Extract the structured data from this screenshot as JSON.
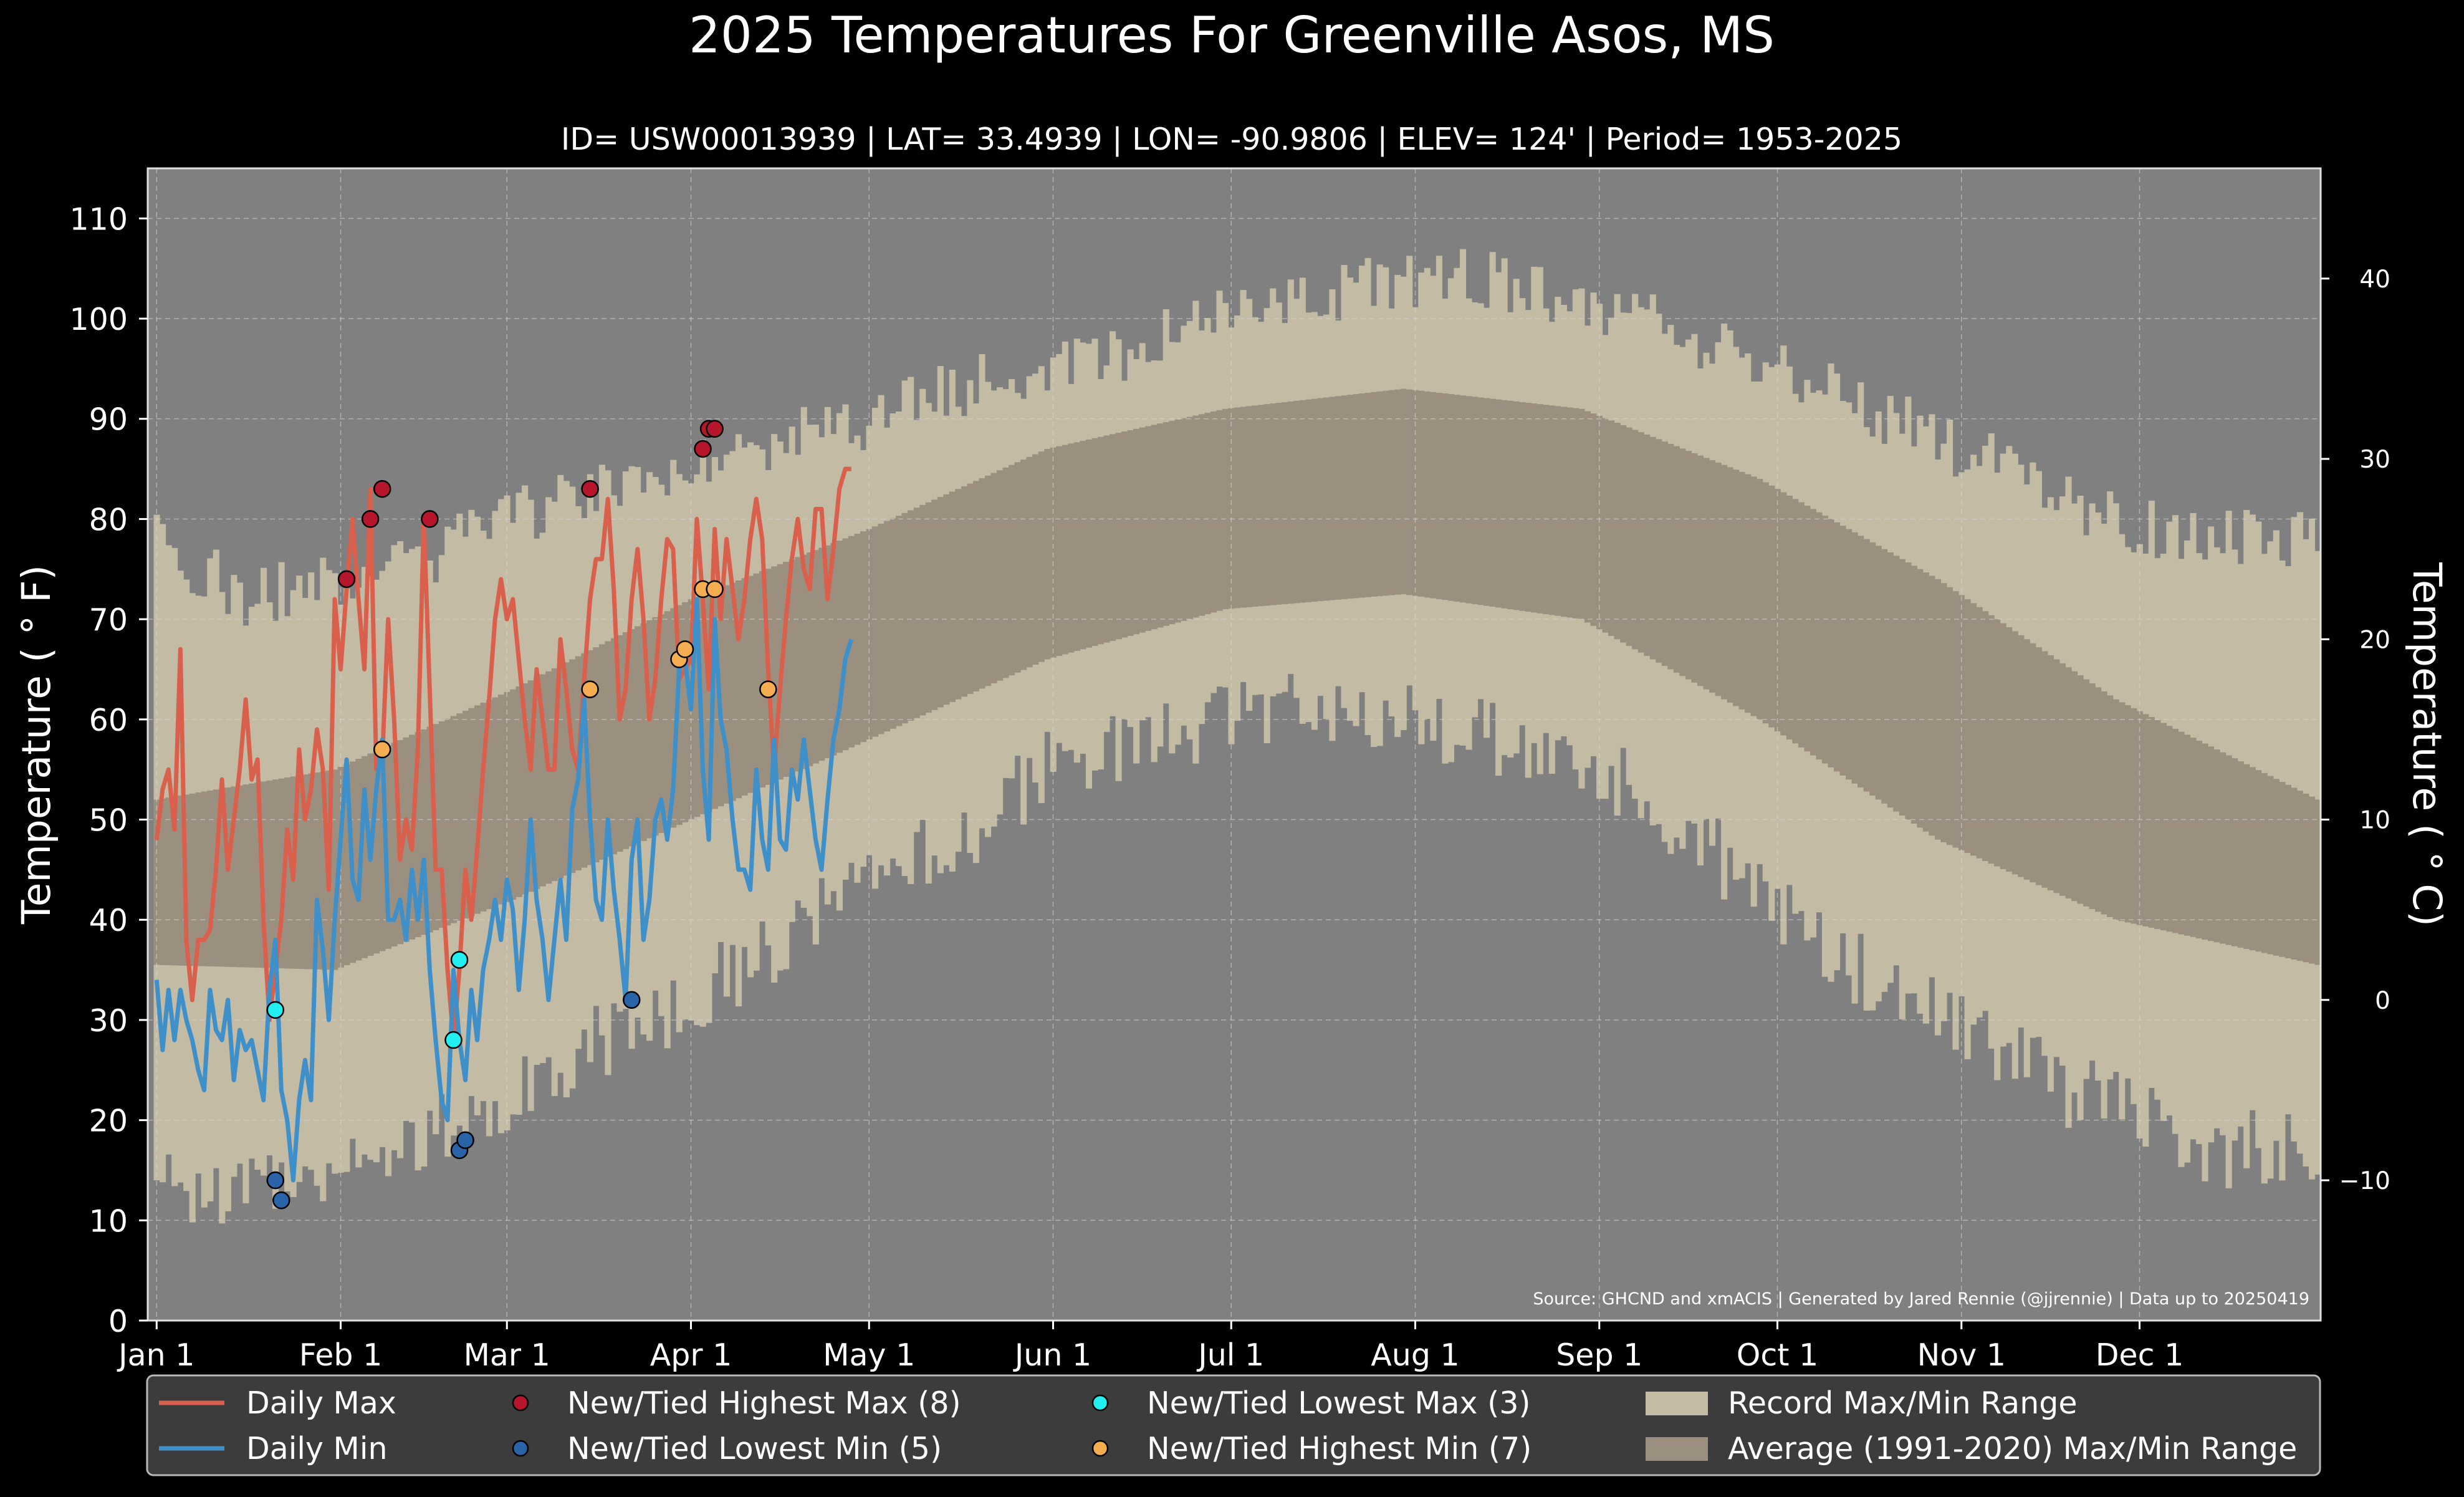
{
  "chart_data": {
    "type": "line",
    "title": "2025 Temperatures For Greenville Asos, MS",
    "subtitle": "ID= USW00013939 | LAT= 33.4939 | LON= -90.9806 | ELEV= 124' | Period= 1953-2025",
    "ylabel_left": "Temperature ($^\\circ$F)",
    "ylabel_left_display": "Temperature ( ° F)",
    "ylabel_right_display": "Temperature ( ° C)",
    "source": "Source: GHCND and xmACIS | Generated by Jared Rennie (@jjrennie) | Data up to 20250419",
    "ylim_f": [
      0,
      115
    ],
    "xlim_day": [
      -1.5,
      364.5
    ],
    "yticks_f": [
      0,
      10,
      20,
      30,
      40,
      50,
      60,
      70,
      80,
      90,
      100,
      110
    ],
    "yticks_c": [
      -10,
      0,
      10,
      20,
      30,
      40
    ],
    "xticks": [
      {
        "label": "Jan 1",
        "day": 0
      },
      {
        "label": "Feb 1",
        "day": 31
      },
      {
        "label": "Mar 1",
        "day": 59
      },
      {
        "label": "Apr 1",
        "day": 90
      },
      {
        "label": "May 1",
        "day": 120
      },
      {
        "label": "Jun 1",
        "day": 151
      },
      {
        "label": "Jul 1",
        "day": 181
      },
      {
        "label": "Aug 1",
        "day": 212
      },
      {
        "label": "Sep 1",
        "day": 243
      },
      {
        "label": "Oct 1",
        "day": 273
      },
      {
        "label": "Nov 1",
        "day": 304
      },
      {
        "label": "Dec 1",
        "day": 334
      }
    ],
    "grid": true,
    "legend_position": "bottom",
    "colors": {
      "daily_max": "#d9604c",
      "daily_min": "#3f8fc9",
      "record_range": "#c4bba5",
      "average_range": "#9b9080",
      "background": "#808080",
      "highest_max": "#b5162b",
      "lowest_min": "#2a63a8",
      "lowest_max": "#22f0f0",
      "highest_min": "#f5ad52"
    },
    "legend": [
      {
        "key": "daily_max",
        "label": "Daily Max",
        "kind": "line"
      },
      {
        "key": "daily_min",
        "label": "Daily Min",
        "kind": "line"
      },
      {
        "key": "highest_max",
        "label": "New/Tied Highest Max (8)",
        "kind": "dot"
      },
      {
        "key": "lowest_min",
        "label": "New/Tied Lowest Min (5)",
        "kind": "dot"
      },
      {
        "key": "lowest_max",
        "label": "New/Tied Lowest Max (3)",
        "kind": "dot"
      },
      {
        "key": "highest_min",
        "label": "New/Tied Highest Min (7)",
        "kind": "dot"
      },
      {
        "key": "record_range",
        "label": "Record Max/Min Range",
        "kind": "patch"
      },
      {
        "key": "average_range",
        "label": "Average (1991-2020) Max/Min Range",
        "kind": "patch"
      }
    ],
    "record_max_anchors": [
      [
        0,
        78
      ],
      [
        15,
        72
      ],
      [
        30,
        74
      ],
      [
        45,
        76
      ],
      [
        60,
        80
      ],
      [
        75,
        83
      ],
      [
        90,
        86
      ],
      [
        105,
        88
      ],
      [
        120,
        90
      ],
      [
        135,
        93
      ],
      [
        150,
        95
      ],
      [
        165,
        97
      ],
      [
        180,
        100
      ],
      [
        195,
        102
      ],
      [
        210,
        104
      ],
      [
        225,
        104
      ],
      [
        240,
        102
      ],
      [
        255,
        99
      ],
      [
        270,
        96
      ],
      [
        285,
        92
      ],
      [
        300,
        88
      ],
      [
        315,
        84
      ],
      [
        330,
        80
      ],
      [
        345,
        78
      ],
      [
        364,
        78
      ]
    ],
    "record_min_anchors": [
      [
        0,
        13
      ],
      [
        15,
        13
      ],
      [
        30,
        16
      ],
      [
        45,
        18
      ],
      [
        60,
        23
      ],
      [
        75,
        28
      ],
      [
        90,
        32
      ],
      [
        105,
        38
      ],
      [
        120,
        43
      ],
      [
        135,
        48
      ],
      [
        150,
        55
      ],
      [
        165,
        57
      ],
      [
        180,
        60
      ],
      [
        195,
        62
      ],
      [
        210,
        60
      ],
      [
        225,
        58
      ],
      [
        240,
        56
      ],
      [
        255,
        50
      ],
      [
        270,
        43
      ],
      [
        285,
        36
      ],
      [
        300,
        30
      ],
      [
        315,
        25
      ],
      [
        330,
        21
      ],
      [
        345,
        17
      ],
      [
        364,
        17
      ]
    ],
    "average_max_anchors": [
      [
        0,
        52
      ],
      [
        30,
        55
      ],
      [
        60,
        63
      ],
      [
        90,
        72
      ],
      [
        120,
        79
      ],
      [
        150,
        87
      ],
      [
        180,
        91
      ],
      [
        210,
        93
      ],
      [
        240,
        91
      ],
      [
        270,
        84
      ],
      [
        300,
        74
      ],
      [
        330,
        62
      ],
      [
        364,
        52
      ]
    ],
    "average_min_anchors": [
      [
        0,
        35.5
      ],
      [
        30,
        35
      ],
      [
        60,
        42
      ],
      [
        90,
        50
      ],
      [
        120,
        58
      ],
      [
        150,
        66
      ],
      [
        180,
        71
      ],
      [
        210,
        72.5
      ],
      [
        240,
        70
      ],
      [
        270,
        60
      ],
      [
        300,
        48
      ],
      [
        330,
        40
      ],
      [
        364,
        35.5
      ]
    ],
    "series": [
      {
        "name": "Daily Max",
        "x_day_start": 0,
        "values": [
          48,
          53,
          55,
          49,
          67,
          38,
          32,
          38,
          38,
          39,
          45,
          54,
          45,
          50,
          55,
          62,
          54,
          56,
          40,
          30,
          35,
          40,
          49,
          44,
          57,
          50,
          53,
          59,
          55,
          43,
          72,
          65,
          73,
          80,
          72,
          65,
          83,
          55,
          56,
          70,
          60,
          46,
          50,
          47,
          57,
          80,
          63,
          45,
          45,
          35,
          28,
          35,
          45,
          40,
          47,
          55,
          62,
          70,
          74,
          70,
          72,
          66,
          60,
          55,
          65,
          60,
          55,
          55,
          68,
          63,
          57,
          55,
          64,
          72,
          76,
          76,
          82,
          73,
          60,
          63,
          72,
          77,
          70,
          60,
          64,
          72,
          78,
          77,
          64,
          65,
          66,
          80,
          72,
          63,
          79,
          70,
          78,
          73,
          68,
          72,
          78,
          82,
          78,
          65,
          55,
          63,
          70,
          76,
          80,
          75,
          73,
          81,
          81,
          72,
          77,
          83,
          85,
          85
        ]
      },
      {
        "name": "Daily Min",
        "x_day_start": 0,
        "values": [
          34,
          27,
          33,
          28,
          33,
          30,
          28,
          25,
          23,
          33,
          29,
          28,
          32,
          24,
          29,
          27,
          28,
          25,
          22,
          33,
          38,
          23,
          20,
          14,
          22,
          26,
          22,
          42,
          37,
          30,
          40,
          48,
          56,
          44,
          42,
          53,
          46,
          53,
          58,
          40,
          40,
          42,
          38,
          45,
          40,
          46,
          35,
          28,
          22,
          20,
          35,
          28,
          24,
          33,
          28,
          35,
          38,
          42,
          38,
          44,
          41,
          33,
          40,
          50,
          42,
          38,
          32,
          38,
          44,
          38,
          51,
          54,
          62,
          50,
          42,
          40,
          50,
          43,
          38,
          32,
          46,
          50,
          38,
          42,
          50,
          52,
          48,
          53,
          65,
          66,
          61,
          72,
          55,
          48,
          70,
          60,
          57,
          50,
          45,
          45,
          43,
          55,
          48,
          45,
          58,
          48,
          47,
          55,
          52,
          58,
          53,
          48,
          45,
          52,
          58,
          61,
          66,
          68
        ]
      },
      {
        "name": "New/Tied Highest Max (8)",
        "points": [
          [
            32,
            74
          ],
          [
            36,
            80
          ],
          [
            38,
            83
          ],
          [
            46,
            80
          ],
          [
            73,
            83
          ],
          [
            92,
            87
          ],
          [
            93,
            89
          ],
          [
            94,
            89
          ]
        ]
      },
      {
        "name": "New/Tied Lowest Min (5)",
        "points": [
          [
            20,
            14
          ],
          [
            21,
            12
          ],
          [
            51,
            17
          ],
          [
            52,
            18
          ],
          [
            80,
            32
          ]
        ]
      },
      {
        "name": "New/Tied Lowest Max (3)",
        "points": [
          [
            20,
            31
          ],
          [
            50,
            28
          ],
          [
            51,
            36
          ]
        ]
      },
      {
        "name": "New/Tied Highest Min (7)",
        "points": [
          [
            38,
            57
          ],
          [
            73,
            63
          ],
          [
            88,
            66
          ],
          [
            89,
            67
          ],
          [
            92,
            73
          ],
          [
            94,
            73
          ],
          [
            103,
            63
          ]
        ]
      }
    ]
  }
}
